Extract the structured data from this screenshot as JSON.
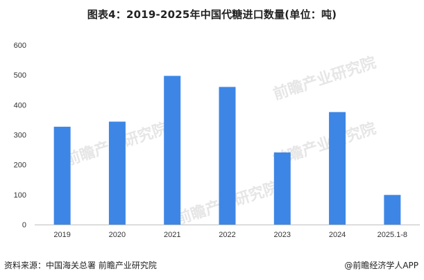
{
  "title": "图表4：2019-2025年中国代糖进口数量(单位：吨)",
  "footer": {
    "source": "资料来源：中国海关总署 前瞻产业研究院",
    "app": "@前瞻经济学人APP"
  },
  "watermark_text": "前瞻产业研究院",
  "colors": {
    "bar": "#3d86e5",
    "axis": "#bfbfbf"
  },
  "chart_data": {
    "type": "bar",
    "title": "图表4：2019-2025年中国代糖进口数量(单位：吨)",
    "categories": [
      "2019",
      "2020",
      "2021",
      "2022",
      "2023",
      "2024",
      "2025.1-8"
    ],
    "values": [
      327,
      344,
      497,
      460,
      241,
      376,
      99
    ],
    "ylim": [
      0,
      600
    ],
    "yticks": [
      0,
      100,
      200,
      300,
      400,
      500,
      600
    ],
    "grid": false,
    "legend": "none"
  }
}
